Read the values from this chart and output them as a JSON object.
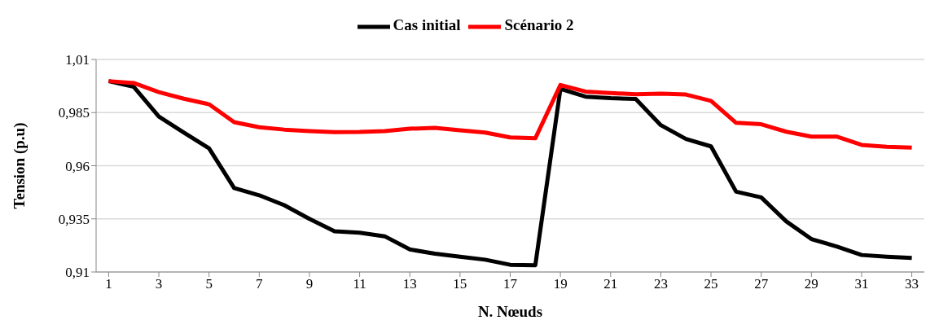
{
  "chart_data": {
    "type": "line",
    "xlabel": "N. Nœuds",
    "ylabel": "Tension (p.u)",
    "x": [
      1,
      2,
      3,
      4,
      5,
      6,
      7,
      8,
      9,
      10,
      11,
      12,
      13,
      14,
      15,
      16,
      17,
      18,
      19,
      20,
      21,
      22,
      23,
      24,
      25,
      26,
      27,
      28,
      29,
      30,
      31,
      32,
      33
    ],
    "xlim": [
      0.5,
      33.5
    ],
    "xticks": [
      1,
      3,
      5,
      7,
      9,
      11,
      13,
      15,
      17,
      19,
      21,
      23,
      25,
      27,
      29,
      31,
      33
    ],
    "series": [
      {
        "name": "Cas initial",
        "color": "#000000",
        "values": [
          0.9998,
          0.9971,
          0.9831,
          0.9756,
          0.9682,
          0.9495,
          0.9461,
          0.9414,
          0.935,
          0.9292,
          0.9285,
          0.9268,
          0.9206,
          0.9186,
          0.9172,
          0.9158,
          0.9134,
          0.9132,
          0.9962,
          0.9925,
          0.9918,
          0.9914,
          0.9791,
          0.9726,
          0.9691,
          0.9478,
          0.9451,
          0.9338,
          0.9255,
          0.922,
          0.918,
          0.9172,
          0.9166
        ]
      },
      {
        "name": "Scénario 2",
        "color": "#ff0000",
        "values": [
          0.9998,
          0.9989,
          0.9946,
          0.9915,
          0.9889,
          0.9805,
          0.9781,
          0.977,
          0.9763,
          0.9758,
          0.9759,
          0.9763,
          0.9774,
          0.9778,
          0.9767,
          0.9756,
          0.9733,
          0.9729,
          0.998,
          0.9949,
          0.9942,
          0.9936,
          0.9939,
          0.9935,
          0.9905,
          0.9802,
          0.9795,
          0.976,
          0.9737,
          0.9737,
          0.9698,
          0.9689,
          0.9685
        ]
      }
    ],
    "ylim": [
      0.91,
      1.01
    ],
    "yticks": [
      {
        "value": 0.91,
        "label": "0,91"
      },
      {
        "value": 0.935,
        "label": "0,935"
      },
      {
        "value": 0.96,
        "label": "0,96"
      },
      {
        "value": 0.985,
        "label": "0,985"
      },
      {
        "value": 1.01,
        "label": "1,01"
      }
    ],
    "grid": "y",
    "legend": "top",
    "marker": "none",
    "line_style": "solid"
  }
}
